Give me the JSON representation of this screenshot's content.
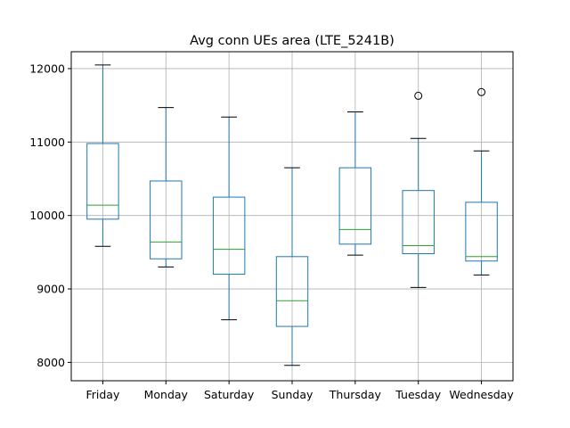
{
  "chart_data": {
    "type": "box",
    "title": "Avg conn UEs area (LTE_5241B)",
    "xlabel": "",
    "ylabel": "",
    "ylim": [
      7750,
      12230
    ],
    "yticks": [
      8000,
      9000,
      10000,
      11000,
      12000
    ],
    "ytick_labels": [
      "8000",
      "9000",
      "10000",
      "11000",
      "12000"
    ],
    "grid": true,
    "categories": [
      "Friday",
      "Monday",
      "Saturday",
      "Sunday",
      "Thursday",
      "Tuesday",
      "Wednesday"
    ],
    "boxes": [
      {
        "category": "Friday",
        "whisker_low": 9580,
        "q1": 9950,
        "median": 10140,
        "q3": 10980,
        "whisker_high": 12050,
        "outliers": []
      },
      {
        "category": "Monday",
        "whisker_low": 9300,
        "q1": 9410,
        "median": 9640,
        "q3": 10470,
        "whisker_high": 11470,
        "outliers": []
      },
      {
        "category": "Saturday",
        "whisker_low": 8580,
        "q1": 9200,
        "median": 9540,
        "q3": 10250,
        "whisker_high": 11340,
        "outliers": []
      },
      {
        "category": "Sunday",
        "whisker_low": 7960,
        "q1": 8490,
        "median": 8840,
        "q3": 9440,
        "whisker_high": 10650,
        "outliers": []
      },
      {
        "category": "Thursday",
        "whisker_low": 9460,
        "q1": 9610,
        "median": 9810,
        "q3": 10650,
        "whisker_high": 11410,
        "outliers": []
      },
      {
        "category": "Tuesday",
        "whisker_low": 9020,
        "q1": 9480,
        "median": 9590,
        "q3": 10340,
        "whisker_high": 11050,
        "outliers": [
          11630
        ]
      },
      {
        "category": "Wednesday",
        "whisker_low": 9190,
        "q1": 9380,
        "median": 9440,
        "q3": 10180,
        "whisker_high": 10880,
        "outliers": [
          11680
        ]
      }
    ]
  },
  "colors": {
    "box": "#1f77b4",
    "median": "#2ca02c",
    "whisker_cap": "#000000",
    "grid": "#b0b0b0",
    "axes": "#000000",
    "outlier": "#000000"
  }
}
